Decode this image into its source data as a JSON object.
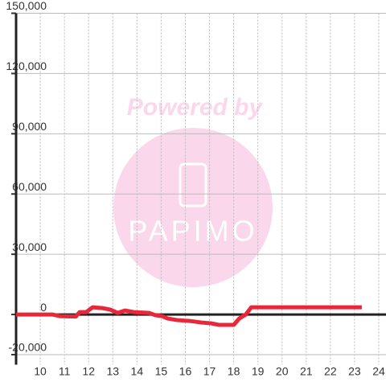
{
  "chart_data": {
    "type": "line",
    "x": [
      9.0,
      10.5,
      10.8,
      11.47,
      11.63,
      11.9,
      12.17,
      12.57,
      12.9,
      13.2,
      13.5,
      13.87,
      14.5,
      14.77,
      15.03,
      15.27,
      15.67,
      16.17,
      16.67,
      17.07,
      17.4,
      18.0,
      18.23,
      18.5,
      18.73,
      23.3
    ],
    "series": [
      {
        "color": "#e8283a",
        "values": [
          0,
          0,
          -800,
          -1000,
          1200,
          1200,
          3600,
          3200,
          2400,
          800,
          2000,
          1200,
          800,
          -400,
          -800,
          -2000,
          -2800,
          -3200,
          -4000,
          -4400,
          -5200,
          -5200,
          -2000,
          0,
          3600,
          3600
        ]
      }
    ],
    "xlim": [
      9,
      24.3
    ],
    "xticks": [
      10,
      11,
      12,
      13,
      14,
      15,
      16,
      17,
      18,
      19,
      20,
      21,
      22,
      23,
      24
    ],
    "ylim": [
      -25000,
      150000
    ],
    "yticks": [
      {
        "value": -20000,
        "label": "-20,000"
      },
      0,
      {
        "value": 30000,
        "label": "30,000"
      },
      {
        "value": 60000,
        "label": "60,000"
      },
      {
        "value": 90000,
        "label": "90,000"
      },
      {
        "value": 120000,
        "label": "120,000"
      },
      {
        "value": 150000,
        "label": "150,000"
      }
    ],
    "grid": true
  },
  "watermark": {
    "caption": "Powered by",
    "logo": "PAPIMO"
  }
}
